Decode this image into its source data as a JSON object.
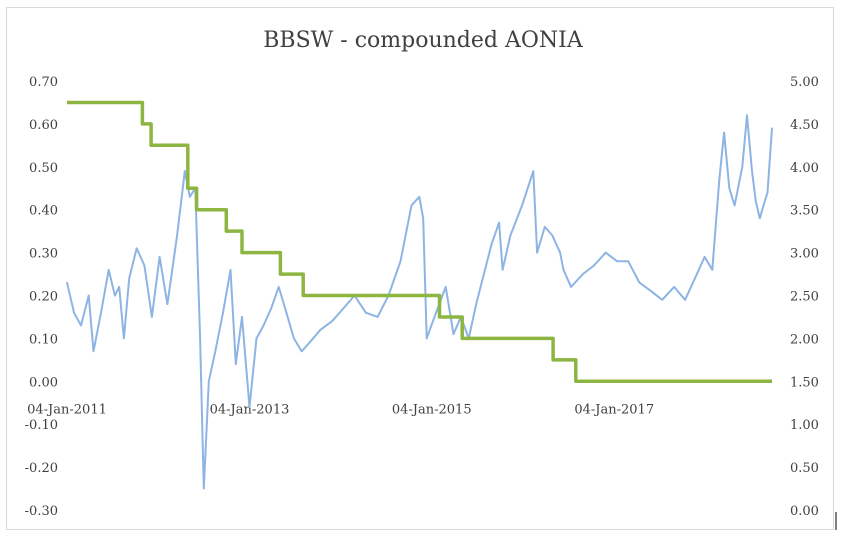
{
  "chart_data": {
    "type": "line",
    "title": "BBSW - compounded AONIA",
    "xlabel": "",
    "ylabel": "",
    "x_axis": {
      "type": "date",
      "range": [
        "2011-01-04",
        "2018-09-28"
      ],
      "tick_labels": [
        "04-Jan-2011",
        "04-Jan-2013",
        "04-Jan-2015",
        "04-Jan-2017"
      ],
      "tick_dates": [
        "2011-01-04",
        "2013-01-04",
        "2015-01-04",
        "2017-01-04"
      ]
    },
    "y_left": {
      "range": [
        -0.3,
        0.7
      ],
      "tick_labels": [
        "0.70",
        "0.60",
        "0.50",
        "0.40",
        "0.30",
        "0.20",
        "0.10",
        "0.00",
        "-0.10",
        "-0.20",
        "-0.30"
      ],
      "tick_values": [
        0.7,
        0.6,
        0.5,
        0.4,
        0.3,
        0.2,
        0.1,
        0.0,
        -0.1,
        -0.2,
        -0.3
      ]
    },
    "y_right": {
      "range": [
        0,
        5
      ],
      "tick_labels": [
        "5.00",
        "4.50",
        "4.00",
        "3.50",
        "3.00",
        "2.50",
        "2.00",
        "1.50",
        "1.00",
        "0.50",
        "0.00"
      ],
      "tick_values": [
        5,
        4.5,
        4,
        3.5,
        3,
        2.5,
        2,
        1.5,
        1,
        0.5,
        0
      ]
    },
    "grid": false,
    "legend": "none",
    "series": [
      {
        "axis": "left",
        "color": "#8eb4e3",
        "style": "line",
        "points": [
          [
            "2011-01-04",
            0.23
          ],
          [
            "2011-02-01",
            0.16
          ],
          [
            "2011-03-01",
            0.13
          ],
          [
            "2011-04-01",
            0.2
          ],
          [
            "2011-04-20",
            0.07
          ],
          [
            "2011-05-20",
            0.16
          ],
          [
            "2011-06-20",
            0.26
          ],
          [
            "2011-07-15",
            0.2
          ],
          [
            "2011-08-01",
            0.22
          ],
          [
            "2011-08-20",
            0.1
          ],
          [
            "2011-09-10",
            0.24
          ],
          [
            "2011-10-10",
            0.31
          ],
          [
            "2011-11-10",
            0.27
          ],
          [
            "2011-12-10",
            0.15
          ],
          [
            "2012-01-10",
            0.29
          ],
          [
            "2012-02-10",
            0.18
          ],
          [
            "2012-03-20",
            0.34
          ],
          [
            "2012-04-20",
            0.49
          ],
          [
            "2012-05-10",
            0.43
          ],
          [
            "2012-06-01",
            0.45
          ],
          [
            "2012-06-20",
            0.1
          ],
          [
            "2012-07-05",
            -0.25
          ],
          [
            "2012-07-25",
            0.0
          ],
          [
            "2012-08-20",
            0.07
          ],
          [
            "2012-09-20",
            0.16
          ],
          [
            "2012-10-20",
            0.26
          ],
          [
            "2012-11-10",
            0.04
          ],
          [
            "2012-12-05",
            0.15
          ],
          [
            "2013-01-04",
            -0.06
          ],
          [
            "2013-02-01",
            0.1
          ],
          [
            "2013-03-01",
            0.13
          ],
          [
            "2013-04-01",
            0.17
          ],
          [
            "2013-05-01",
            0.22
          ],
          [
            "2013-06-01",
            0.16
          ],
          [
            "2013-07-01",
            0.1
          ],
          [
            "2013-08-01",
            0.07
          ],
          [
            "2013-09-01",
            0.09
          ],
          [
            "2013-10-15",
            0.12
          ],
          [
            "2013-12-01",
            0.14
          ],
          [
            "2014-01-15",
            0.17
          ],
          [
            "2014-03-01",
            0.2
          ],
          [
            "2014-04-15",
            0.16
          ],
          [
            "2014-06-01",
            0.15
          ],
          [
            "2014-07-15",
            0.2
          ],
          [
            "2014-09-01",
            0.28
          ],
          [
            "2014-10-15",
            0.41
          ],
          [
            "2014-11-15",
            0.43
          ],
          [
            "2014-12-01",
            0.38
          ],
          [
            "2014-12-15",
            0.1
          ],
          [
            "2015-01-15",
            0.15
          ],
          [
            "2015-03-01",
            0.22
          ],
          [
            "2015-04-01",
            0.11
          ],
          [
            "2015-05-01",
            0.15
          ],
          [
            "2015-06-01",
            0.1
          ],
          [
            "2015-07-01",
            0.18
          ],
          [
            "2015-08-01",
            0.25
          ],
          [
            "2015-09-01",
            0.32
          ],
          [
            "2015-10-01",
            0.37
          ],
          [
            "2015-10-15",
            0.26
          ],
          [
            "2015-11-15",
            0.34
          ],
          [
            "2016-01-01",
            0.41
          ],
          [
            "2016-02-15",
            0.49
          ],
          [
            "2016-03-01",
            0.3
          ],
          [
            "2016-04-01",
            0.36
          ],
          [
            "2016-05-01",
            0.34
          ],
          [
            "2016-06-01",
            0.3
          ],
          [
            "2016-06-15",
            0.26
          ],
          [
            "2016-07-15",
            0.22
          ],
          [
            "2016-09-01",
            0.25
          ],
          [
            "2016-10-15",
            0.27
          ],
          [
            "2016-12-01",
            0.3
          ],
          [
            "2017-01-15",
            0.28
          ],
          [
            "2017-03-01",
            0.28
          ],
          [
            "2017-04-15",
            0.23
          ],
          [
            "2017-06-01",
            0.21
          ],
          [
            "2017-07-15",
            0.19
          ],
          [
            "2017-09-01",
            0.22
          ],
          [
            "2017-10-15",
            0.19
          ],
          [
            "2017-12-01",
            0.25
          ],
          [
            "2018-01-01",
            0.29
          ],
          [
            "2018-02-01",
            0.26
          ],
          [
            "2018-03-01",
            0.47
          ],
          [
            "2018-03-20",
            0.58
          ],
          [
            "2018-04-10",
            0.45
          ],
          [
            "2018-05-01",
            0.41
          ],
          [
            "2018-06-01",
            0.5
          ],
          [
            "2018-06-20",
            0.62
          ],
          [
            "2018-07-10",
            0.49
          ],
          [
            "2018-07-25",
            0.42
          ],
          [
            "2018-08-10",
            0.38
          ],
          [
            "2018-08-25",
            0.41
          ],
          [
            "2018-09-10",
            0.44
          ],
          [
            "2018-09-28",
            0.59
          ]
        ]
      },
      {
        "axis": "right",
        "color": "#8db542",
        "style": "step",
        "points": [
          [
            "2011-01-04",
            4.75
          ],
          [
            "2011-11-02",
            4.5
          ],
          [
            "2011-12-07",
            4.25
          ],
          [
            "2012-05-02",
            3.75
          ],
          [
            "2012-06-06",
            3.5
          ],
          [
            "2012-10-03",
            3.25
          ],
          [
            "2012-12-05",
            3.0
          ],
          [
            "2013-05-08",
            2.75
          ],
          [
            "2013-08-07",
            2.5
          ],
          [
            "2015-02-04",
            2.25
          ],
          [
            "2015-05-06",
            2.0
          ],
          [
            "2016-05-04",
            1.75
          ],
          [
            "2016-08-03",
            1.5
          ],
          [
            "2018-09-28",
            1.5
          ]
        ]
      }
    ]
  }
}
